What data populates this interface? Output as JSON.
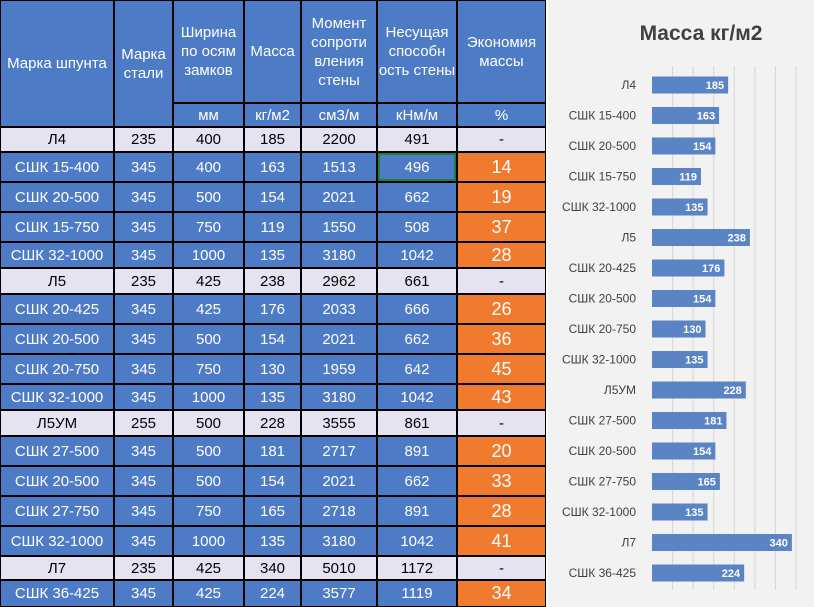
{
  "table": {
    "columns": [
      {
        "title": "Марка шпунта",
        "unit": ""
      },
      {
        "title": "Марка стали",
        "unit": ""
      },
      {
        "title": "Ширина по осям замков",
        "unit": "мм"
      },
      {
        "title": "Масса",
        "unit": "кг/м2"
      },
      {
        "title": "Момент сопроти вления стены",
        "unit": "см3/м"
      },
      {
        "title": "Несущая способн ость стены",
        "unit": "кНм/м"
      },
      {
        "title": "Экономия массы",
        "unit": "%"
      }
    ],
    "rows": [
      {
        "cells": [
          "Л4",
          "235",
          "400",
          "185",
          "2200",
          "491",
          "-"
        ],
        "base": true
      },
      {
        "cells": [
          "СШК 15-400",
          "345",
          "400",
          "163",
          "1513",
          "496",
          "14"
        ],
        "base": false
      },
      {
        "cells": [
          "СШК 20-500",
          "345",
          "500",
          "154",
          "2021",
          "662",
          "19"
        ],
        "base": false
      },
      {
        "cells": [
          "СШК 15-750",
          "345",
          "750",
          "119",
          "1550",
          "508",
          "37"
        ],
        "base": false
      },
      {
        "cells": [
          "СШК 32-1000",
          "345",
          "1000",
          "135",
          "3180",
          "1042",
          "28"
        ],
        "base": false
      },
      {
        "cells": [
          "Л5",
          "235",
          "425",
          "238",
          "2962",
          "661",
          "-"
        ],
        "base": true
      },
      {
        "cells": [
          "СШК 20-425",
          "345",
          "425",
          "176",
          "2033",
          "666",
          "26"
        ],
        "base": false
      },
      {
        "cells": [
          "СШК 20-500",
          "345",
          "500",
          "154",
          "2021",
          "662",
          "36"
        ],
        "base": false
      },
      {
        "cells": [
          "СШК 20-750",
          "345",
          "750",
          "130",
          "1959",
          "642",
          "45"
        ],
        "base": false
      },
      {
        "cells": [
          "СШК 32-1000",
          "345",
          "1000",
          "135",
          "3180",
          "1042",
          "43"
        ],
        "base": false
      },
      {
        "cells": [
          "Л5УМ",
          "255",
          "500",
          "228",
          "3555",
          "861",
          "-"
        ],
        "base": true
      },
      {
        "cells": [
          "СШК 27-500",
          "345",
          "500",
          "181",
          "2717",
          "891",
          "20"
        ],
        "base": false
      },
      {
        "cells": [
          "СШК 20-500",
          "345",
          "500",
          "154",
          "2021",
          "662",
          "33"
        ],
        "base": false
      },
      {
        "cells": [
          "СШК 27-750",
          "345",
          "750",
          "165",
          "2718",
          "891",
          "28"
        ],
        "base": false
      },
      {
        "cells": [
          "СШК 32-1000",
          "345",
          "1000",
          "135",
          "3180",
          "1042",
          "41"
        ],
        "base": false
      },
      {
        "cells": [
          "Л7",
          "235",
          "425",
          "340",
          "5010",
          "1172",
          "-"
        ],
        "base": true
      },
      {
        "cells": [
          "СШК 36-425",
          "345",
          "425",
          "224",
          "3577",
          "1119",
          "34"
        ],
        "base": false
      }
    ],
    "selected_cell": {
      "row": 1,
      "col": 5
    }
  },
  "colors": {
    "header_bg": "#4e7bc6",
    "row_bg": "#4e7bc6",
    "base_row_bg": "#e6e3f0",
    "saving_bg": "#f07b2e",
    "bar": "#5b84c4"
  },
  "chart_data": {
    "type": "bar",
    "orientation": "horizontal",
    "title": "Масса кг/м2",
    "categories": [
      "Л4",
      "СШК 15-400",
      "СШК 20-500",
      "СШК 15-750",
      "СШК 32-1000",
      "Л5",
      "СШК 20-425",
      "СШК 20-500",
      "СШК 20-750",
      "СШК 32-1000",
      "Л5УМ",
      "СШК 27-500",
      "СШК 20-500",
      "СШК 27-750",
      "СШК 32-1000",
      "Л7",
      "СШК 36-425"
    ],
    "values": [
      185,
      163,
      154,
      119,
      135,
      238,
      176,
      154,
      130,
      135,
      228,
      181,
      154,
      165,
      135,
      340,
      224
    ],
    "data_labels": true,
    "legend": "none",
    "grid": true
  }
}
